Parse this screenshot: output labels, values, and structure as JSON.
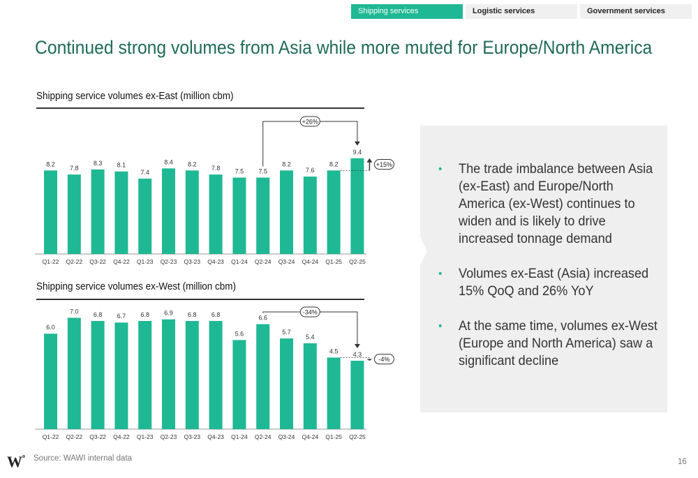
{
  "tabs": [
    {
      "label": "Shipping services",
      "active": true
    },
    {
      "label": "Logistic services",
      "active": false
    },
    {
      "label": "Government services",
      "active": false
    }
  ],
  "title": "Continued strong volumes from Asia while more muted for Europe/North America",
  "colors": {
    "bar": "#1fb894",
    "title": "#1f6b56",
    "panel": "#efefef"
  },
  "chart_data": [
    {
      "type": "bar",
      "title": "Shipping service volumes ex-East (million cbm)",
      "categories": [
        "Q1-22",
        "Q2-22",
        "Q3-22",
        "Q4-22",
        "Q1-23",
        "Q2-23",
        "Q3-23",
        "Q4-23",
        "Q1-24",
        "Q2-24",
        "Q3-24",
        "Q4-24",
        "Q1-25",
        "Q2-25"
      ],
      "values": [
        8.2,
        7.8,
        8.3,
        8.1,
        7.4,
        8.4,
        8.2,
        7.8,
        7.5,
        7.5,
        8.2,
        7.6,
        8.2,
        9.4
      ],
      "value_labels": [
        "8.2",
        "7.8",
        "8.3",
        "8.1",
        "7.4",
        "8.4",
        "8.2",
        "7.8",
        "7.5",
        "7.5",
        "8.2",
        "7.6",
        "8.2",
        "9.4"
      ],
      "annotations": {
        "yoy": "+26%",
        "qoq": "+15%"
      }
    },
    {
      "type": "bar",
      "title": "Shipping service volumes ex-West (million cbm)",
      "categories": [
        "Q1-22",
        "Q2-22",
        "Q3-22",
        "Q4-22",
        "Q1-23",
        "Q2-23",
        "Q3-23",
        "Q4-23",
        "Q1-24",
        "Q2-24",
        "Q3-24",
        "Q4-24",
        "Q1-25",
        "Q2-25"
      ],
      "values": [
        6.0,
        7.0,
        6.8,
        6.7,
        6.8,
        6.9,
        6.8,
        6.8,
        5.6,
        6.6,
        5.7,
        5.4,
        4.5,
        4.3
      ],
      "value_labels": [
        "6.0",
        "7.0",
        "6.8",
        "6.7",
        "6.8",
        "6.9",
        "6.8",
        "6.8",
        "5.6",
        "6.6",
        "5.7",
        "5.4",
        "4.5",
        "4.3"
      ],
      "annotations": {
        "yoy": "-34%",
        "qoq": "-4%"
      }
    }
  ],
  "bullets": [
    "The trade imbalance between Asia (ex-East) and Europe/North America (ex-West) continues to widen and is likely to drive increased tonnage demand",
    "Volumes ex-East (Asia) increased 15% QoQ and 26% YoY",
    "At the same time, volumes ex-West (Europe and North America) saw a significant decline"
  ],
  "bullet_glyph": "•",
  "logo": {
    "letter": "W",
    "mark": "o"
  },
  "source": "Source: WAWI internal data",
  "page_number": "16"
}
